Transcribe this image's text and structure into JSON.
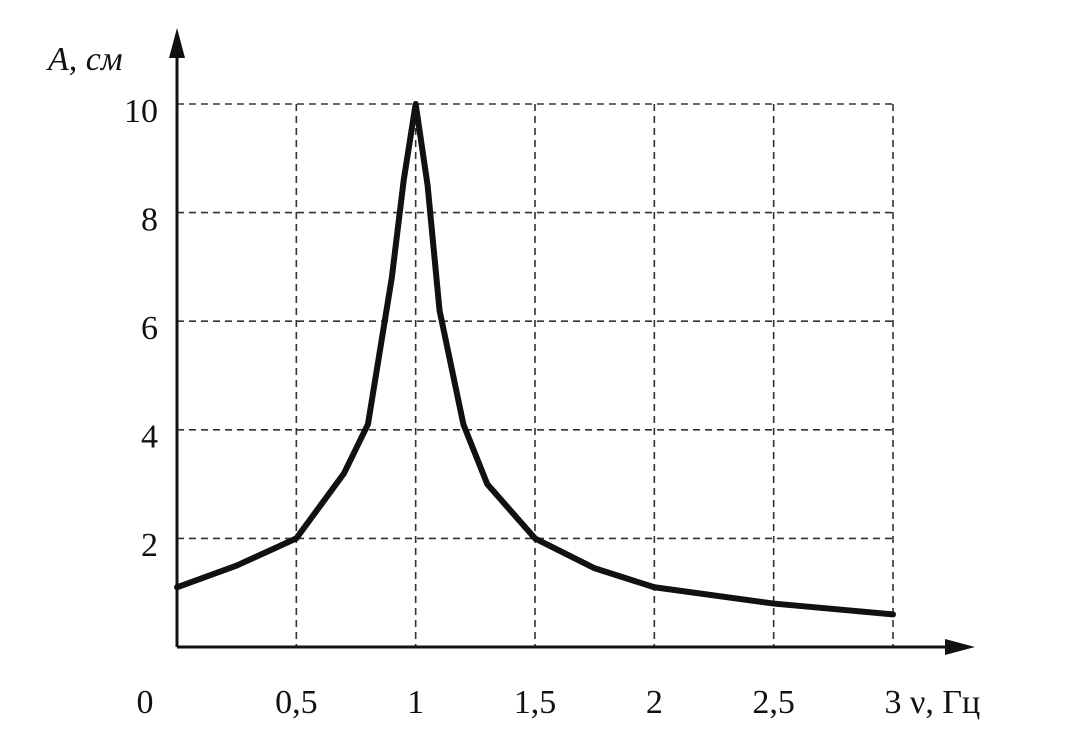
{
  "chart_data": {
    "type": "line",
    "ylabel": "A, см",
    "xlabel": "ν, Гц",
    "x": [
      0,
      0.25,
      0.5,
      0.6,
      0.7,
      0.8,
      0.9,
      0.95,
      1,
      1.05,
      1.1,
      1.2,
      1.3,
      1.5,
      1.75,
      2,
      2.5,
      3
    ],
    "series": [
      {
        "color": "#111111",
        "values": [
          1.1,
          1.5,
          2.0,
          2.6,
          3.2,
          4.1,
          6.8,
          8.6,
          10,
          8.5,
          6.2,
          4.1,
          3.0,
          2.0,
          1.45,
          1.1,
          0.8,
          0.6
        ]
      }
    ],
    "xlim": [
      0,
      3
    ],
    "ylim": [
      0,
      10
    ],
    "xticks": [
      0,
      {
        "value": 0.5,
        "label": "0,5"
      },
      1,
      {
        "value": 1.5,
        "label": "1,5"
      },
      2,
      {
        "value": 2.5,
        "label": "2,5"
      },
      3
    ],
    "yticks": [
      2,
      4,
      6,
      8,
      10
    ],
    "grid": true
  }
}
